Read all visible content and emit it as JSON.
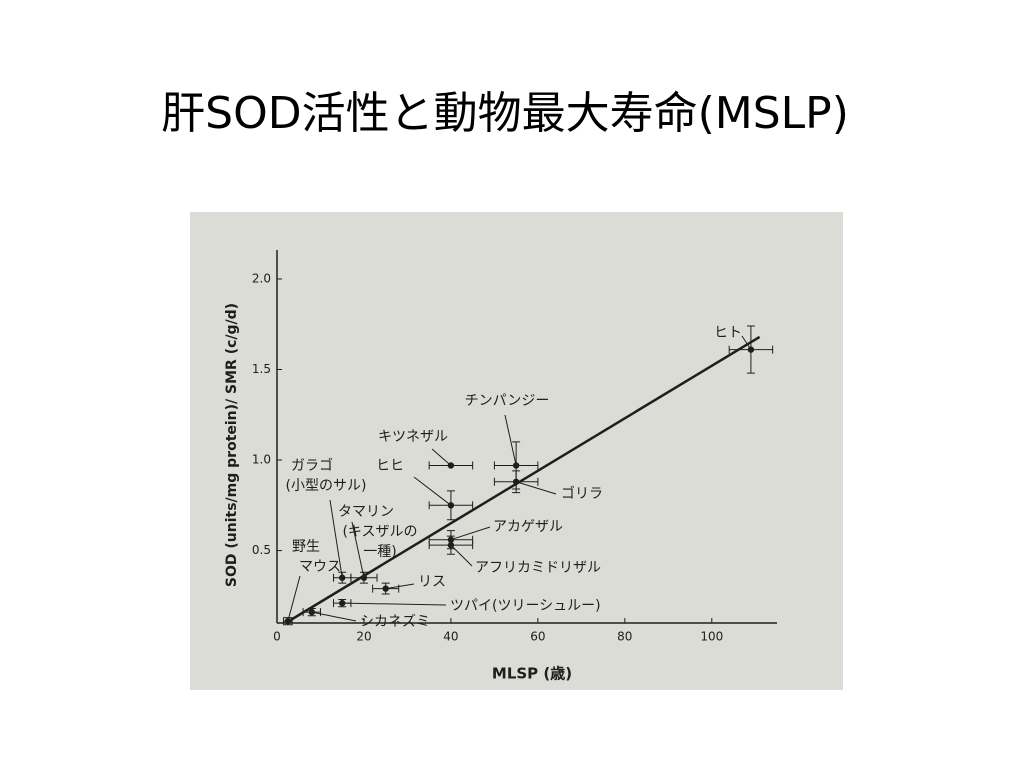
{
  "chart_data": {
    "type": "scatter",
    "title": "肝SOD活性と動物最大寿命(MSLP)",
    "x_label": "MLSP (歳)",
    "y_label": "SOD (units/mg protein)/ SMR (c/g/d)",
    "x": [
      2.5,
      8,
      15,
      15,
      20,
      25,
      40,
      40,
      40,
      40,
      55,
      55,
      109
    ],
    "y": [
      0.11,
      0.16,
      0.21,
      0.35,
      0.35,
      0.29,
      0.97,
      0.75,
      0.56,
      0.53,
      0.97,
      0.88,
      1.61
    ],
    "xerr": [
      1,
      2,
      2,
      2,
      3,
      3,
      5,
      5,
      5,
      5,
      5,
      5,
      5
    ],
    "yerr": [
      0.02,
      0.02,
      0.02,
      0.03,
      0.03,
      0.03,
      0,
      0.08,
      0.05,
      0.05,
      0.13,
      0.06,
      0.13
    ],
    "point_labels": [
      [
        "野生",
        "マウス"
      ],
      [
        "シカネズミ"
      ],
      [
        "ツパイ(ツリーシュルー)"
      ],
      [
        "ガラゴ",
        "(小型のサル)"
      ],
      [
        "タマリン",
        "(キスザルの",
        "一種)"
      ],
      [
        "リス"
      ],
      [
        "キツネザル"
      ],
      [
        "ヒヒ"
      ],
      [
        "アカゲザル"
      ],
      [
        "アフリカミドリザル"
      ],
      [
        "チンパンジー"
      ],
      [
        "ゴリラ"
      ],
      [
        "ヒト"
      ]
    ],
    "fit_line": {
      "x": [
        2,
        111
      ],
      "y": [
        0.1,
        1.68
      ]
    },
    "color": "#1e1e1e",
    "xlim": [
      0,
      115
    ],
    "ylim": [
      0.1,
      2.16
    ],
    "xticks": [
      0,
      20,
      40,
      60,
      80,
      100
    ],
    "yticks": [
      {
        "value": 0.5,
        "label": "0.5"
      },
      {
        "value": 1.0,
        "label": "1.0"
      },
      {
        "value": 1.5,
        "label": "1.5"
      },
      {
        "value": 2.0,
        "label": "2.0"
      }
    ]
  }
}
